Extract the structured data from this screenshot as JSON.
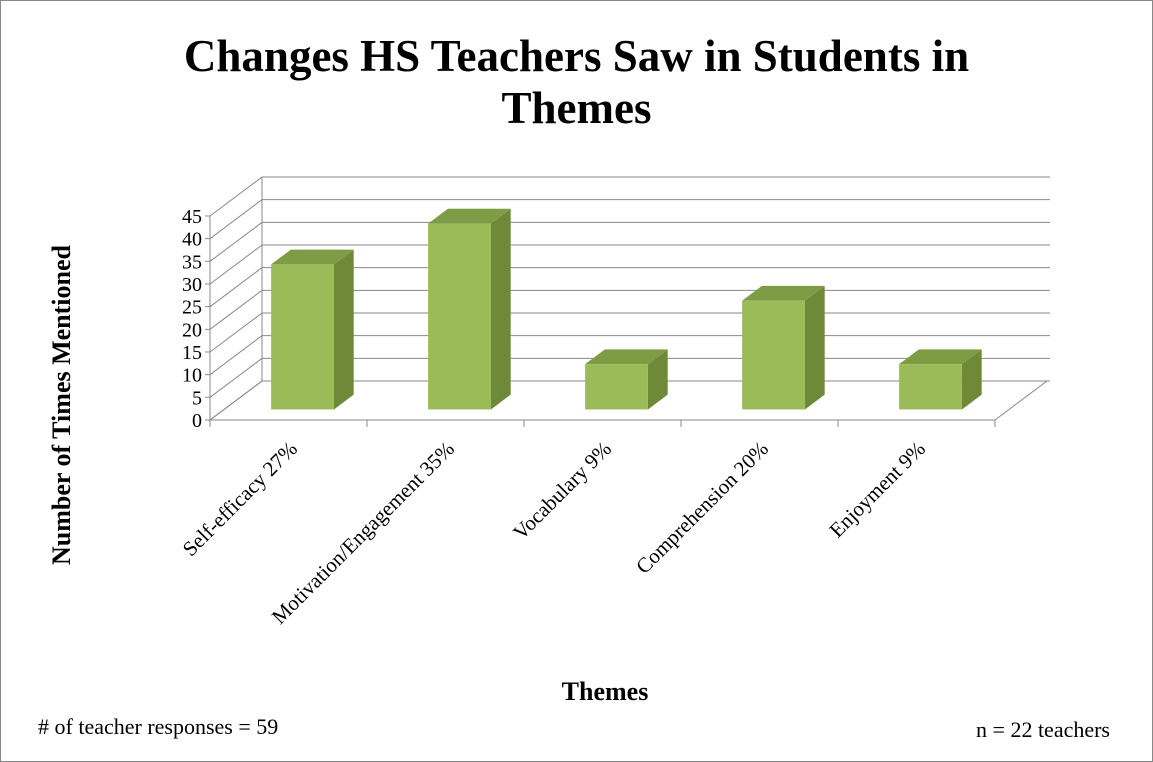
{
  "chart_data": {
    "type": "bar3d",
    "title": "Changes HS Teachers Saw in Students in Themes",
    "x_label": "Themes",
    "y_label": "Number of Times Mentioned",
    "categories": [
      "Self-efficacy 27%",
      "Motivation/Engagement 35%",
      "Vocabulary 9%",
      "Comprehension 20%",
      "Enjoyment 9%"
    ],
    "values": [
      32,
      41,
      10,
      24,
      10
    ],
    "color": "#9bbb59",
    "ylim": [
      0,
      45
    ],
    "yticks": [
      0,
      5,
      10,
      15,
      20,
      25,
      30,
      35,
      40,
      45
    ],
    "grid": true,
    "annotations": [
      "# of teacher responses = 59",
      "n = 22 teachers"
    ]
  }
}
